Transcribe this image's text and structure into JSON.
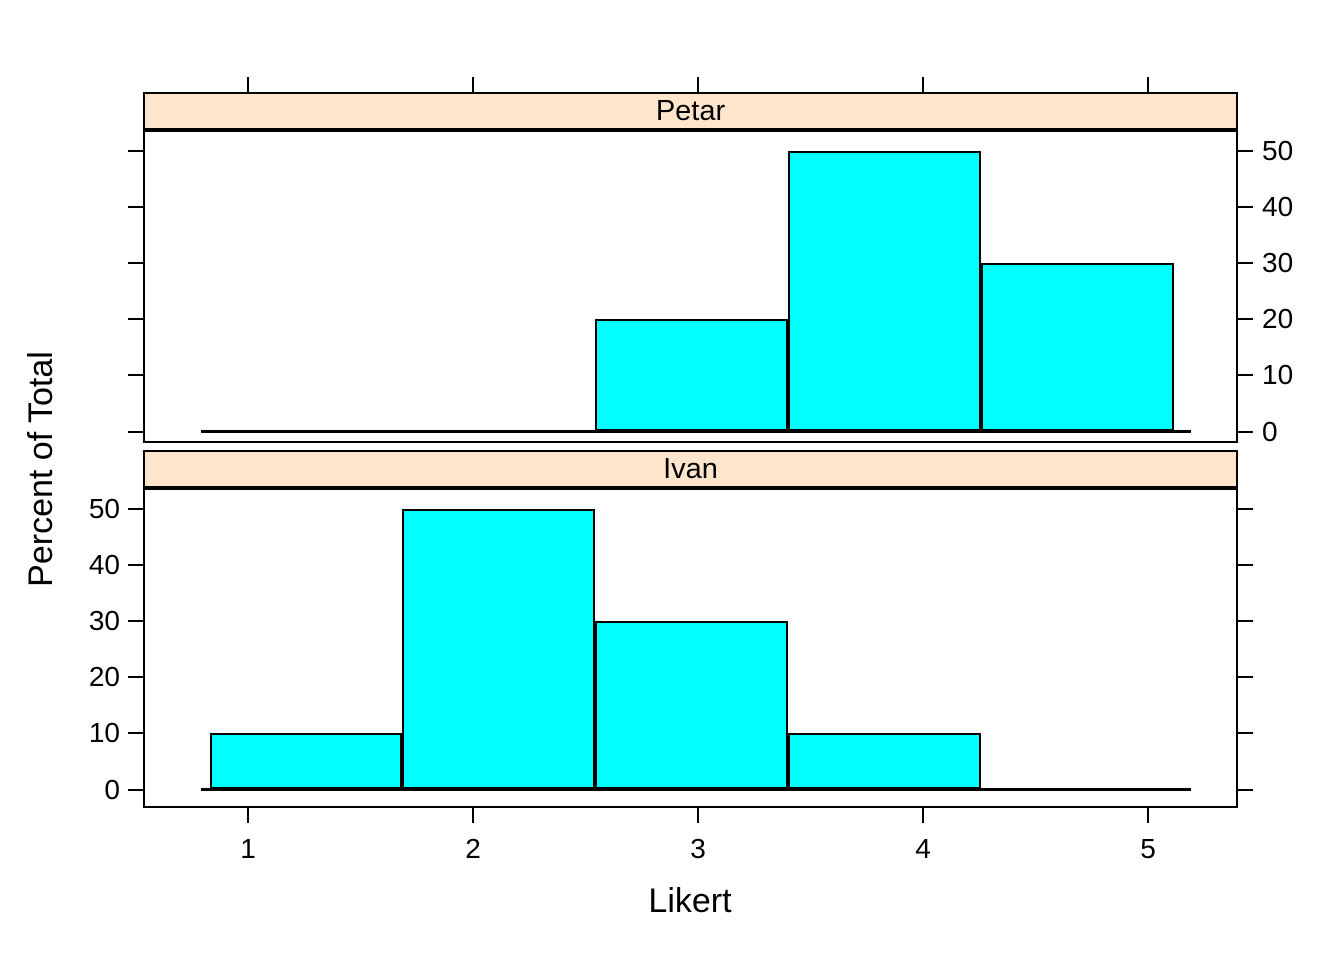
{
  "chart_data": {
    "type": "bar",
    "chart_kind": "lattice-histogram-two-panels",
    "title": "",
    "xlabel": "Likert",
    "ylabel": "Percent of Total",
    "value_unit": "percent",
    "categories": [
      1,
      2,
      3,
      4,
      5
    ],
    "series": [
      {
        "name": "Petar",
        "values": [
          0,
          0,
          20,
          50,
          30
        ]
      },
      {
        "name": "Ivan",
        "values": [
          10,
          50,
          30,
          10,
          0
        ]
      }
    ],
    "panel_order_top_to_bottom": [
      "Petar",
      "Ivan"
    ],
    "x_ticks": [
      1,
      2,
      3,
      4,
      5
    ],
    "y_ticks": [
      0,
      10,
      20,
      30,
      40,
      50
    ],
    "ylim": [
      0,
      50
    ],
    "bin_edges": [
      0.829,
      1.686,
      2.543,
      3.4,
      4.257,
      5.114
    ],
    "baseline_span": [
      0.79,
      5.19
    ],
    "grid": false,
    "legend": "none",
    "axis_label_sides": {
      "top_panel_y_labels": "right",
      "bottom_panel_y_labels": "left",
      "x_labels": "bottom"
    },
    "colors": {
      "bar_fill": "#00FFFF",
      "bar_stroke": "#000000",
      "strip_fill": "#FFE5CC",
      "strip_stroke": "#000000",
      "axis": "#000000",
      "text": "#000000",
      "background": "#FFFFFF"
    }
  }
}
